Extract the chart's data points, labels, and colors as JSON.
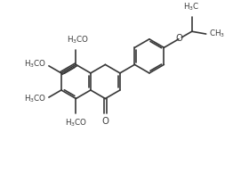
{
  "bg_color": "#ffffff",
  "line_color": "#383838",
  "lw": 1.2,
  "font_size": 6.8,
  "fig_width": 2.8,
  "fig_height": 1.95,
  "dpi": 100
}
